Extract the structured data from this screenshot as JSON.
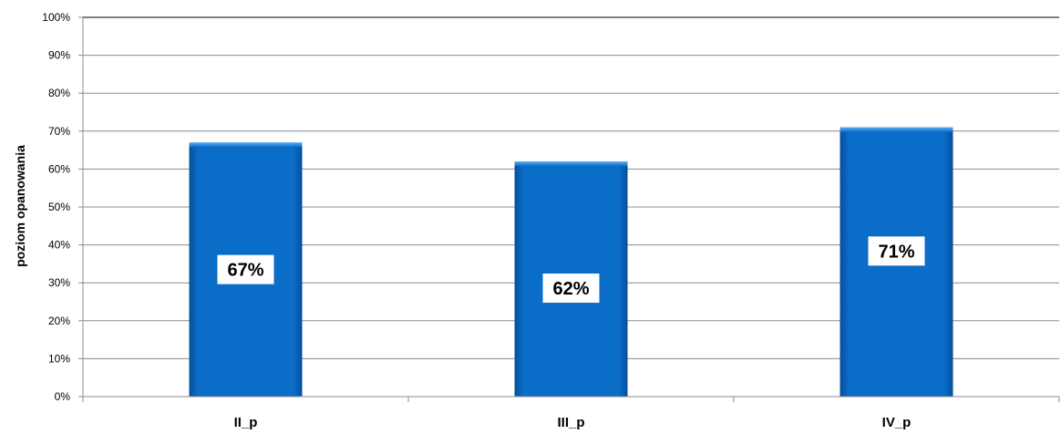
{
  "chart_data": {
    "type": "bar",
    "categories": [
      "II_p",
      "III_p",
      "IV_p"
    ],
    "values": [
      67,
      62,
      71
    ],
    "data_labels": [
      "67%",
      "62%",
      "71%"
    ],
    "ylabel": "poziom opanowania",
    "xlabel": "",
    "ylim": [
      0,
      100
    ],
    "yticks": [
      "0%",
      "10%",
      "20%",
      "30%",
      "40%",
      "50%",
      "60%",
      "70%",
      "80%",
      "90%",
      "100%"
    ],
    "grid": true,
    "bar_color": "#0a6ec9"
  }
}
